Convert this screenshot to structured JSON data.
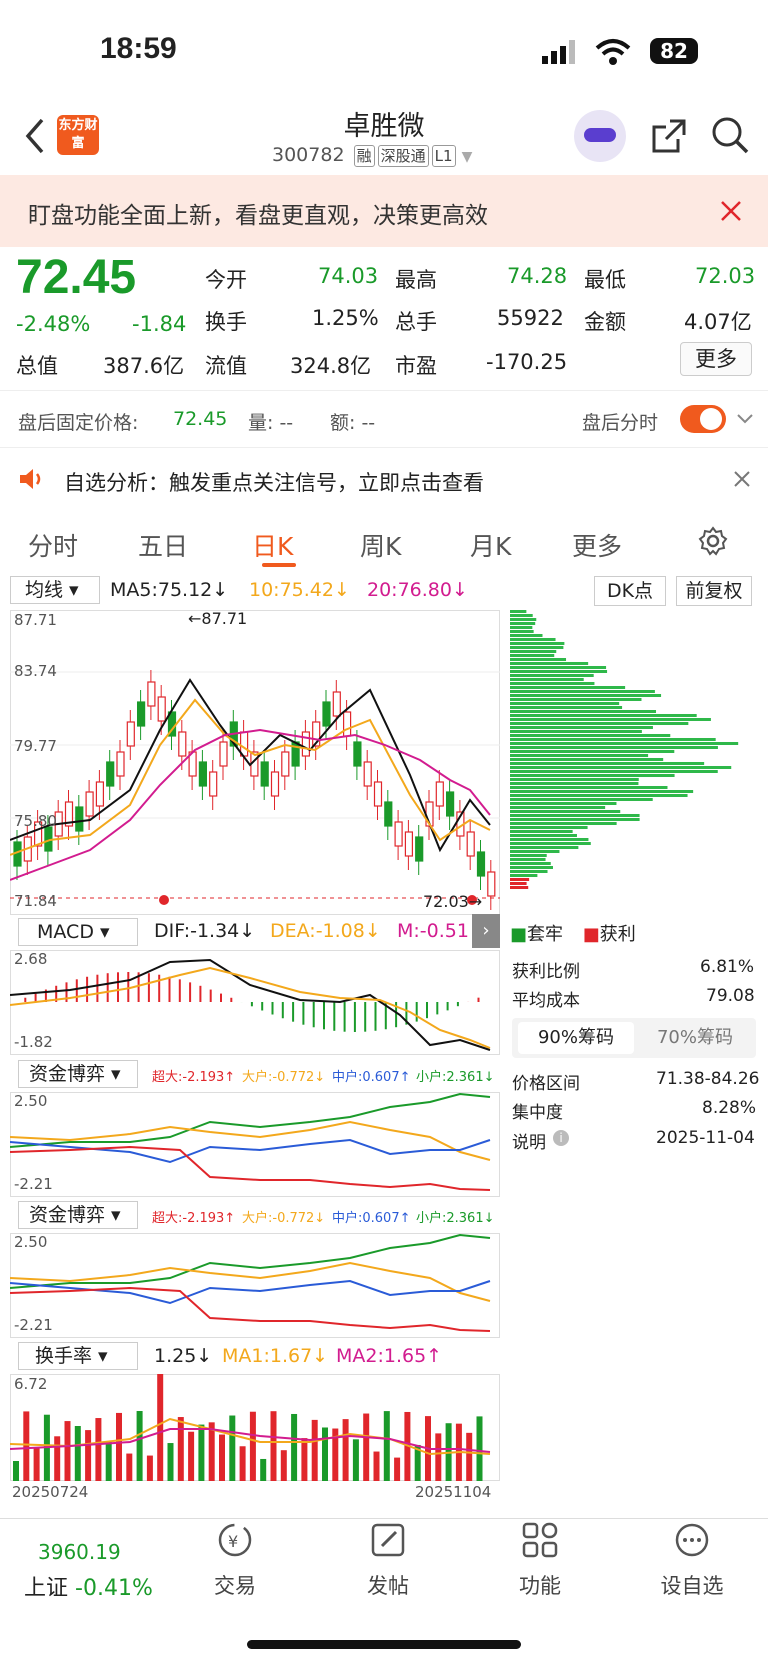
{
  "status": {
    "time": "18:59",
    "battery": "82"
  },
  "nav": {
    "title": "卓胜微",
    "code": "300782",
    "tags": [
      "融",
      "深股通",
      "L1"
    ],
    "logo": "东方财富"
  },
  "banner": {
    "text": "盯盘功能全面上新，看盘更直观，决策更高效"
  },
  "quote": {
    "price": "72.45",
    "pct": "-2.48%",
    "chg": "-1.84",
    "open_l": "今开",
    "open": "74.03",
    "high_l": "最高",
    "high": "74.28",
    "low_l": "最低",
    "low": "72.03",
    "turn_l": "换手",
    "turn": "1.25%",
    "vol_l": "总手",
    "vol": "55922",
    "amt_l": "金额",
    "amt": "4.07亿",
    "mcap_l": "总值",
    "mcap": "387.6亿",
    "fcap_l": "流值",
    "fcap": "324.8亿",
    "pe_l": "市盈",
    "pe": "-170.25",
    "more": "更多"
  },
  "after": {
    "label": "盘后固定价格:",
    "price": "72.45",
    "vol_l": "量:",
    "vol": "--",
    "amt_l": "额:",
    "amt": "--",
    "time_l": "盘后分时"
  },
  "alert": {
    "text": "自选分析：触发重点关注信号，立即点击查看"
  },
  "tabs": [
    "分时",
    "五日",
    "日K",
    "周K",
    "月K",
    "更多"
  ],
  "ma": {
    "sel": "均线",
    "ma5": "MA5:75.12↓",
    "ma10": "10:75.42↓",
    "ma20": "20:76.80↓",
    "dk": "DK点",
    "fq": "前复权"
  },
  "chart_labels": {
    "top": "87.71",
    "t1": "83.74",
    "t2": "79.77",
    "t3": "75.80",
    "bot": "71.84",
    "max": "←87.71",
    "min": "72.03→"
  },
  "macd": {
    "sel": "MACD",
    "dif": "DIF:-1.34↓",
    "dea": "DEA:-1.08↓",
    "m": "M:-0.51",
    "top": "2.68",
    "bot": "-1.82"
  },
  "fund": {
    "sel": "资金博弈",
    "super": "超大:-2.193↑",
    "big": "大户:-0.772↓",
    "mid": "中户:0.607↑",
    "small": "小户:2.361↓",
    "top": "2.50",
    "bot": "-2.21"
  },
  "turnover": {
    "sel": "换手率",
    "val": "1.25↓",
    "ma1": "MA1:1.67↓",
    "ma2": "MA2:1.65↑",
    "top": "6.72",
    "d1": "20250724",
    "d2": "20251104"
  },
  "chip": {
    "trap": "套牢",
    "profit": "获利",
    "r1l": "获利比例",
    "r1": "6.81%",
    "r2l": "平均成本",
    "r2": "79.08",
    "tab1": "90%筹码",
    "tab2": "70%筹码",
    "r3l": "价格区间",
    "r3": "71.38-84.26",
    "r4l": "集中度",
    "r4": "8.28%",
    "r5l": "说明",
    "r5": "2025-11-04"
  },
  "bottom": {
    "index": "3960.19",
    "idx_name": "上证",
    "idx_pct": "-0.41%",
    "items": [
      "交易",
      "发帖",
      "功能",
      "设自选"
    ]
  },
  "colors": {
    "up": "#e0262b",
    "down": "#1a9a2a",
    "accent": "#f05a1e"
  }
}
